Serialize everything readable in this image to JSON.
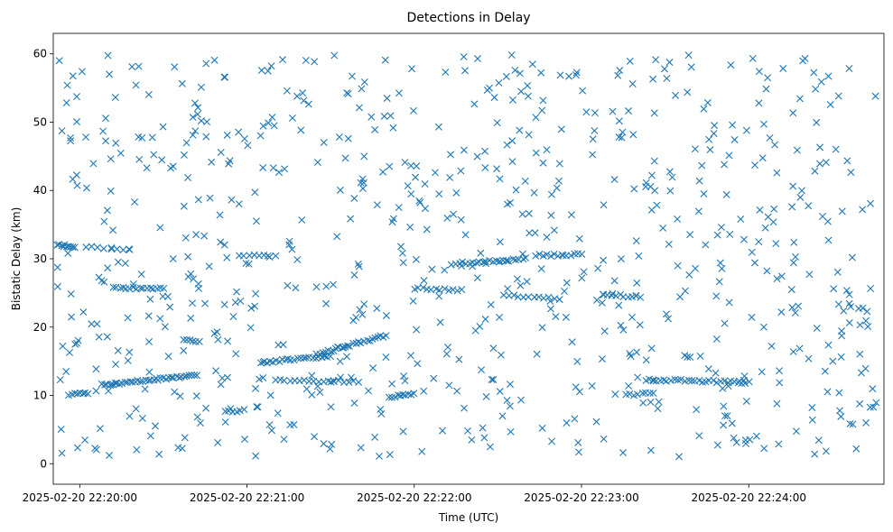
{
  "chart_data": {
    "type": "scatter",
    "title": "Detections in Delay",
    "xlabel": "Time (UTC)",
    "ylabel": "Bistatic Delay (km)",
    "marker": "x",
    "marker_color": "#1f77b4",
    "xlim_seconds": [
      -9.5,
      288.5
    ],
    "ylim": [
      -3,
      63
    ],
    "x_ticks": [
      {
        "seconds": 0,
        "label": "2025-02-20 22:20:00"
      },
      {
        "seconds": 60,
        "label": "2025-02-20 22:21:00"
      },
      {
        "seconds": 120,
        "label": "2025-02-20 22:22:00"
      },
      {
        "seconds": 180,
        "label": "2025-02-20 22:23:00"
      },
      {
        "seconds": 240,
        "label": "2025-02-20 22:24:00"
      }
    ],
    "y_ticks": [
      0,
      10,
      20,
      30,
      40,
      50,
      60
    ],
    "time_span_seconds": [
      -8,
      286
    ],
    "track_segments": [
      {
        "t0": -8,
        "t1": -2,
        "d0": 32.0,
        "d1": 31.8,
        "points": 10
      },
      {
        "t0": 2,
        "t1": 18,
        "d0": 31.7,
        "d1": 31.4,
        "points": 8
      },
      {
        "t0": -4,
        "t1": 3,
        "d0": 10.2,
        "d1": 10.4,
        "points": 8
      },
      {
        "t0": 12,
        "t1": 30,
        "d0": 25.8,
        "d1": 25.6,
        "points": 16
      },
      {
        "t0": 8,
        "t1": 42,
        "d0": 11.5,
        "d1": 13.0,
        "points": 38
      },
      {
        "t0": 37,
        "t1": 43,
        "d0": 18.3,
        "d1": 17.9,
        "points": 6
      },
      {
        "t0": 52,
        "t1": 59,
        "d0": 7.6,
        "d1": 7.8,
        "points": 6
      },
      {
        "t0": 57,
        "t1": 70,
        "d0": 30.6,
        "d1": 30.4,
        "points": 8
      },
      {
        "t0": 65,
        "t1": 90,
        "d0": 14.8,
        "d1": 15.8,
        "points": 24
      },
      {
        "t0": 85,
        "t1": 110,
        "d0": 16.0,
        "d1": 18.8,
        "points": 26
      },
      {
        "t0": 70,
        "t1": 100,
        "d0": 12.3,
        "d1": 12.0,
        "points": 18
      },
      {
        "t0": 111,
        "t1": 120,
        "d0": 9.8,
        "d1": 10.2,
        "points": 10
      },
      {
        "t0": 120,
        "t1": 137,
        "d0": 25.7,
        "d1": 25.4,
        "points": 12
      },
      {
        "t0": 135,
        "t1": 160,
        "d0": 29.3,
        "d1": 30.0,
        "points": 22
      },
      {
        "t0": 152,
        "t1": 172,
        "d0": 24.6,
        "d1": 24.2,
        "points": 12
      },
      {
        "t0": 165,
        "t1": 180,
        "d0": 30.5,
        "d1": 30.6,
        "points": 12
      },
      {
        "t0": 188,
        "t1": 201,
        "d0": 24.7,
        "d1": 24.5,
        "points": 10
      },
      {
        "t0": 196,
        "t1": 206,
        "d0": 10.0,
        "d1": 10.3,
        "points": 8
      },
      {
        "t0": 203,
        "t1": 240,
        "d0": 12.3,
        "d1": 11.9,
        "points": 30
      }
    ],
    "background_noise": {
      "points": 760,
      "delay_range": [
        1,
        60
      ],
      "seed": 20250220
    }
  }
}
